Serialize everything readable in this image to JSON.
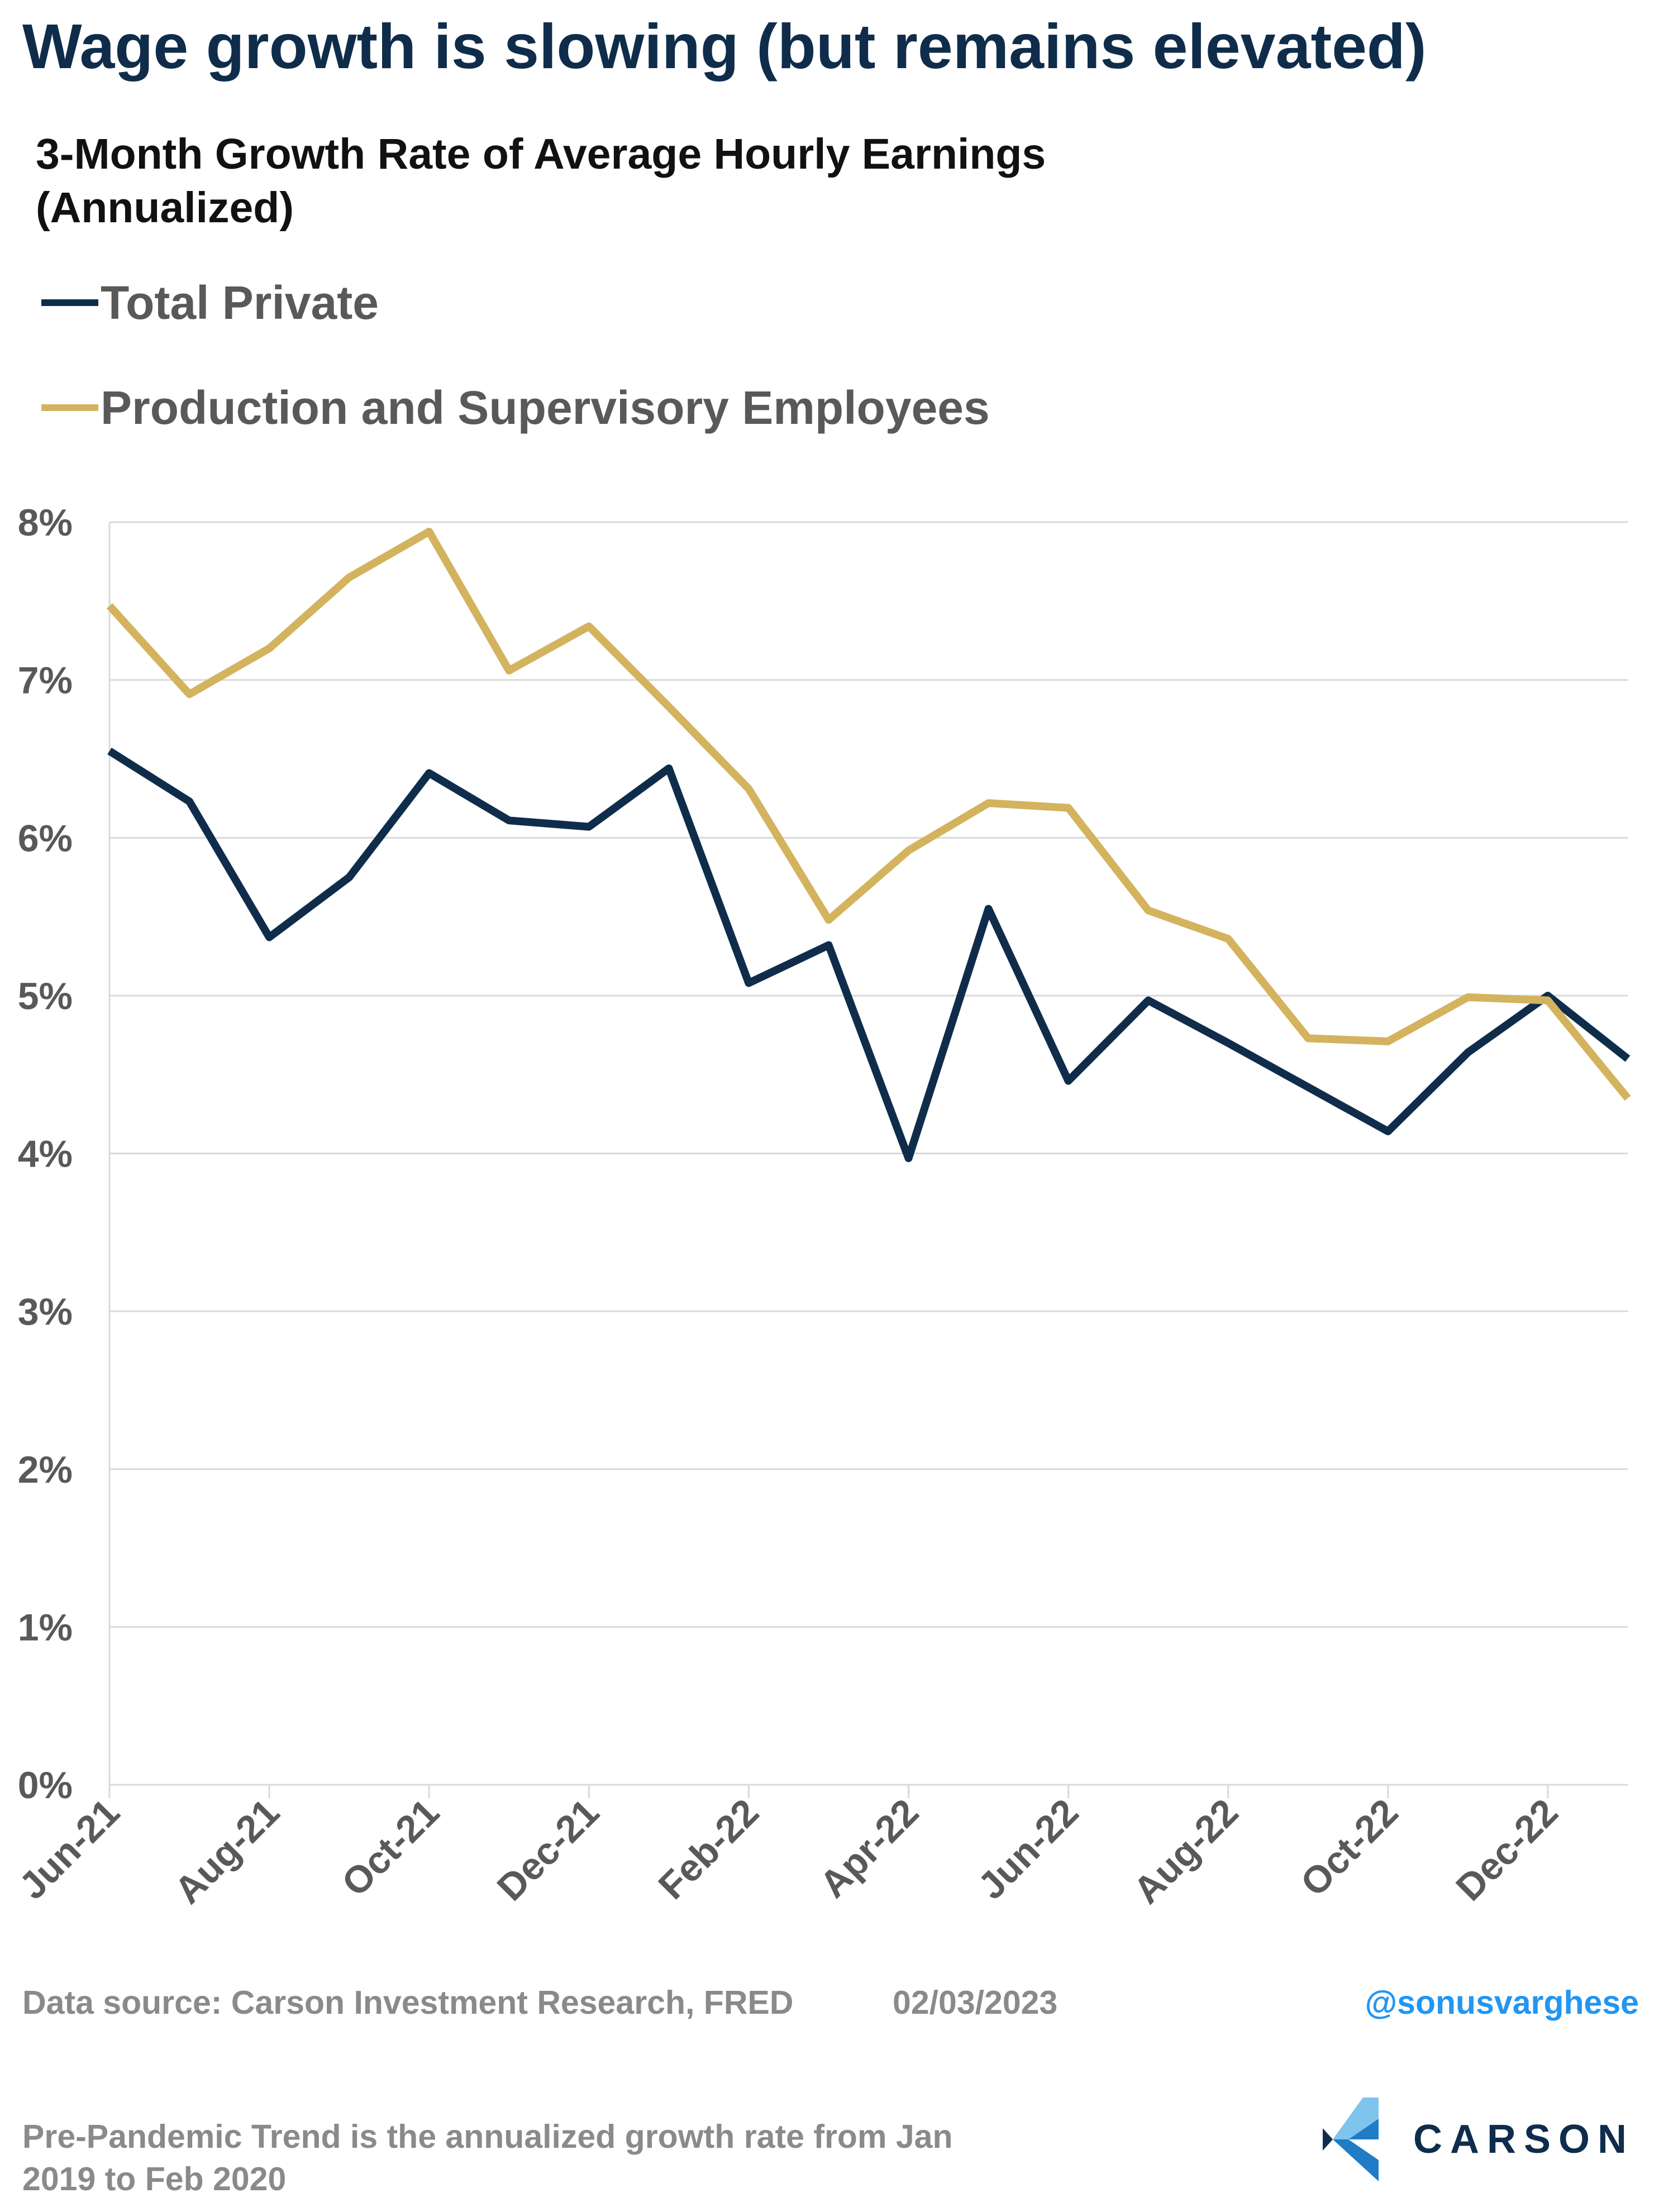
{
  "headline": "Wage growth is slowing (but remains elevated)",
  "subtitle": "3-Month Growth Rate of Average Hourly Earnings (Annualized)",
  "legend": [
    {
      "label": "Total Private",
      "color": "#0f2d4b"
    },
    {
      "label": "Production and Supervisory Employees",
      "color": "#d4b35e"
    }
  ],
  "footer": {
    "source": "Data source: Carson Investment Research, FRED",
    "date": "02/03/2023",
    "handle": "@sonusvarghese",
    "note": "Pre-Pandemic Trend is the annualized growth rate from Jan 2019 to Feb 2020",
    "brand": "CARSON"
  },
  "chart_data": {
    "type": "line",
    "title": "3-Month Growth Rate of Average Hourly Earnings (Annualized)",
    "xlabel": "",
    "ylabel": "",
    "x": [
      "Jun-21",
      "Jul-21",
      "Aug-21",
      "Sep-21",
      "Oct-21",
      "Nov-21",
      "Dec-21",
      "Jan-22",
      "Feb-22",
      "Mar-22",
      "Apr-22",
      "May-22",
      "Jun-22",
      "Jul-22",
      "Aug-22",
      "Sep-22",
      "Oct-22",
      "Nov-22",
      "Dec-22",
      "Jan-23"
    ],
    "x_tick_labels": [
      "Jun-21",
      "Aug-21",
      "Oct-21",
      "Dec-21",
      "Feb-22",
      "Apr-22",
      "Jun-22",
      "Aug-22",
      "Oct-22",
      "Dec-22"
    ],
    "ylim": [
      0,
      8
    ],
    "y_ticks": [
      0,
      1,
      2,
      3,
      4,
      5,
      6,
      7,
      8
    ],
    "y_tick_labels": [
      "0%",
      "1%",
      "2%",
      "3%",
      "4%",
      "5%",
      "6%",
      "7%",
      "8%"
    ],
    "grid": "horizontal",
    "series": [
      {
        "name": "Total Private",
        "color": "#0f2d4b",
        "values": [
          6.55,
          6.23,
          5.37,
          5.75,
          6.41,
          6.11,
          6.07,
          6.44,
          5.08,
          5.32,
          3.97,
          5.55,
          4.46,
          4.97,
          4.7,
          4.42,
          4.14,
          4.64,
          5.0,
          4.6
        ]
      },
      {
        "name": "Production and Supervisory Employees",
        "color": "#d4b35e",
        "values": [
          7.47,
          6.91,
          7.2,
          7.65,
          7.94,
          7.06,
          7.34,
          6.83,
          6.31,
          5.48,
          5.92,
          6.22,
          6.19,
          5.54,
          5.36,
          4.73,
          4.71,
          4.99,
          4.97,
          4.35
        ]
      }
    ]
  }
}
